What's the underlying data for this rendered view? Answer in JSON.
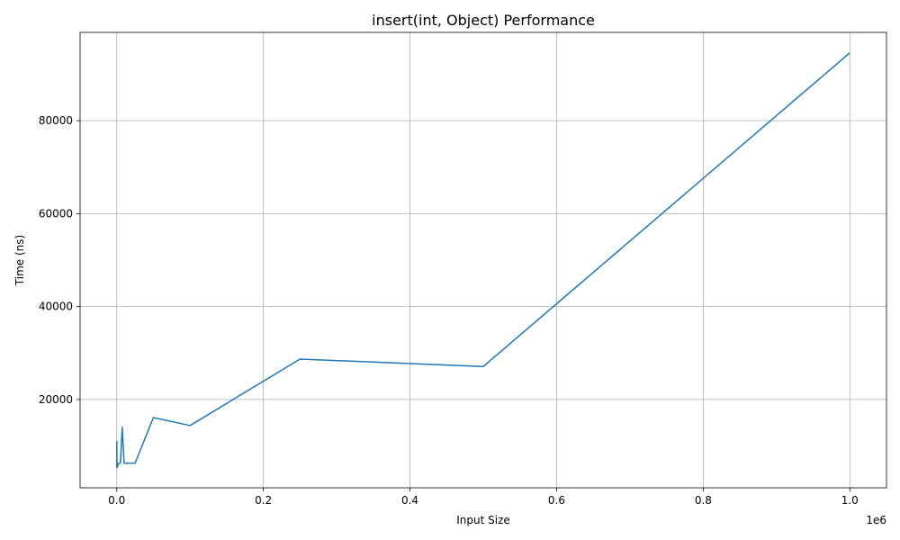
{
  "chart_data": {
    "type": "line",
    "title": "insert(int, Object) Performance",
    "xlabel": "Input Size",
    "ylabel": "Time (ns)",
    "x_offset_label": "1e6",
    "xlim": [
      -50000,
      1050000
    ],
    "ylim": [
      1000,
      99000
    ],
    "x_ticks": [
      0,
      200000,
      400000,
      600000,
      800000,
      1000000
    ],
    "x_tick_labels": [
      "0.0",
      "0.2",
      "0.4",
      "0.6",
      "0.8",
      "1.0"
    ],
    "y_ticks": [
      20000,
      40000,
      60000,
      80000
    ],
    "y_tick_labels": [
      "20000",
      "40000",
      "60000",
      "80000"
    ],
    "grid": true,
    "line_color": "#1f77b4",
    "series": [
      {
        "x": [
          10,
          100,
          250,
          500,
          1000,
          2500,
          5000,
          7500,
          10000,
          25000,
          50000,
          100000,
          250000,
          500000,
          1000000
        ],
        "y": [
          5800,
          11000,
          5500,
          5300,
          5600,
          6200,
          6400,
          14000,
          6300,
          6300,
          16100,
          14400,
          28700,
          27100,
          94600
        ]
      }
    ]
  }
}
